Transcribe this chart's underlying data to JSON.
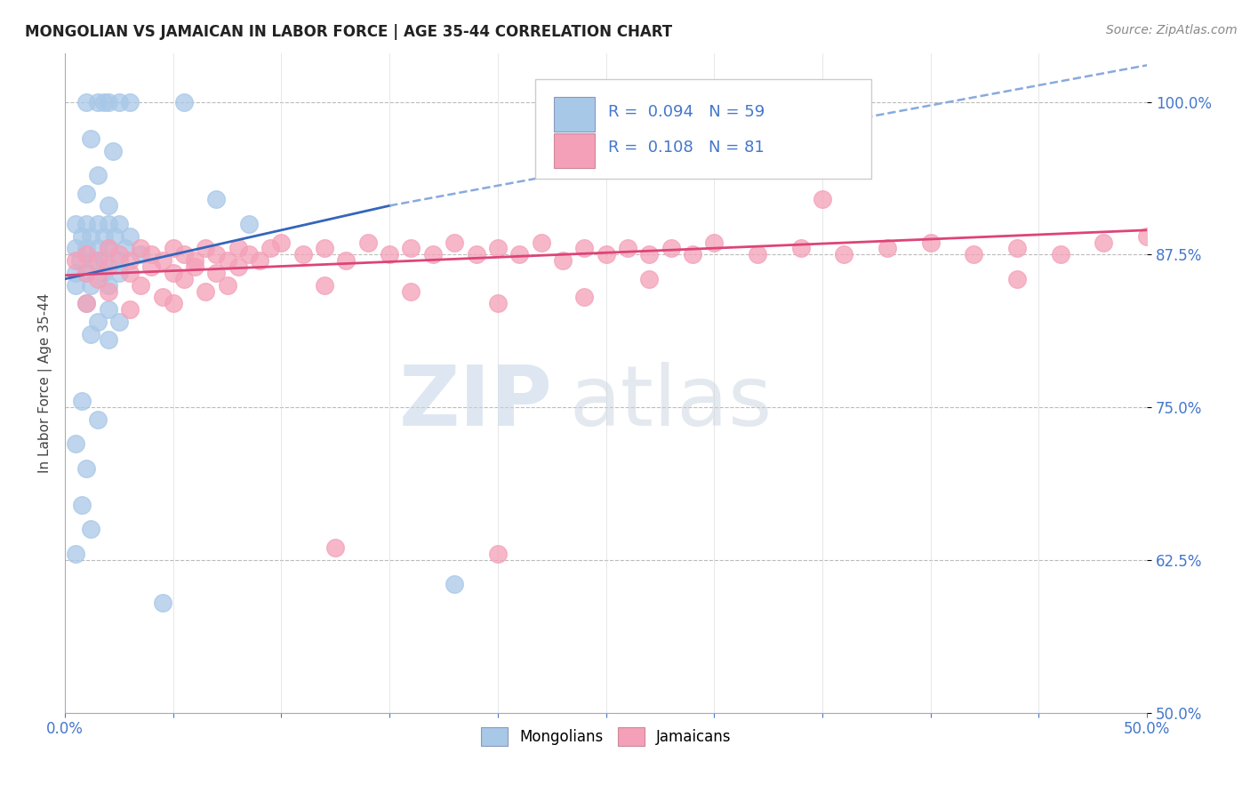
{
  "title": "MONGOLIAN VS JAMAICAN IN LABOR FORCE | AGE 35-44 CORRELATION CHART",
  "source": "Source: ZipAtlas.com",
  "ylabel": "In Labor Force | Age 35-44",
  "xmin": 0.0,
  "xmax": 50.0,
  "ymin": 50.0,
  "ymax": 104.0,
  "mongolian_R": 0.094,
  "mongolian_N": 59,
  "jamaican_R": 0.108,
  "jamaican_N": 81,
  "mongolian_color": "#a8c8e8",
  "jamaican_color": "#f4a0b8",
  "trend_mongolian_solid_color": "#3366bb",
  "trend_mongolian_dash_color": "#88aadd",
  "trend_jamaican_color": "#dd4477",
  "tick_color": "#4477cc",
  "yticks": [
    50.0,
    62.5,
    75.0,
    87.5,
    100.0
  ],
  "mong_trend_x0": 0.0,
  "mong_trend_y0": 85.5,
  "mong_trend_x1": 15.0,
  "mong_trend_y1": 91.5,
  "mong_trend_x2": 50.0,
  "mong_trend_y2": 103.0,
  "jama_trend_x0": 0.0,
  "jama_trend_y0": 85.8,
  "jama_trend_x1": 50.0,
  "jama_trend_y1": 89.5
}
